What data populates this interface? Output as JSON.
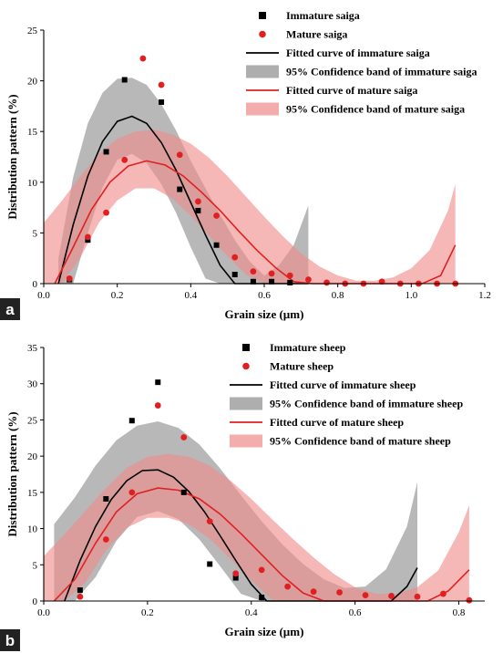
{
  "colors": {
    "immature": "#000000",
    "mature": "#e02020",
    "immature_band": "#8c8c8c",
    "mature_band": "#f08a8a"
  },
  "chart_data": [
    {
      "panel": "a",
      "type": "scatter",
      "xlabel": "Grain size (µm)",
      "ylabel": "Distribution pattern (%)",
      "xlim": [
        0.0,
        1.2
      ],
      "ylim": [
        0,
        25
      ],
      "xticks": [
        "0.0",
        "0.2",
        "0.4",
        "0.6",
        "0.8",
        "1.0",
        "1.2"
      ],
      "xtick_values": [
        0.0,
        0.2,
        0.4,
        0.6,
        0.8,
        1.0,
        1.2
      ],
      "yticks": [
        "0",
        "5",
        "10",
        "15",
        "20",
        "25"
      ],
      "ytick_values": [
        0,
        5,
        10,
        15,
        20,
        25
      ],
      "legend_position": "top-right",
      "legend": [
        {
          "label": "Immature saiga",
          "kind": "square",
          "color": "#000000"
        },
        {
          "label": "Mature saiga",
          "kind": "circle",
          "color": "#e02020"
        },
        {
          "label": "Fitted curve of immature saiga",
          "kind": "line",
          "color": "#000000"
        },
        {
          "label": "95% Confidence band of immature saiga",
          "kind": "band",
          "color": "#8c8c8c"
        },
        {
          "label": "Fitted curve of mature saiga",
          "kind": "line",
          "color": "#e02020"
        },
        {
          "label": "95% Confidence band of mature saiga",
          "kind": "band",
          "color": "#f08a8a"
        }
      ],
      "series": [
        {
          "name": "Immature saiga",
          "marker": "square",
          "x": [
            0.07,
            0.12,
            0.17,
            0.22,
            0.32,
            0.37,
            0.42,
            0.47,
            0.52,
            0.57,
            0.62,
            0.67
          ],
          "y": [
            0.4,
            4.3,
            13.0,
            20.1,
            17.9,
            9.3,
            7.2,
            3.8,
            0.9,
            0.2,
            0.2,
            0.1
          ]
        },
        {
          "name": "Mature saiga",
          "marker": "circle",
          "x": [
            0.07,
            0.12,
            0.17,
            0.22,
            0.27,
            0.32,
            0.37,
            0.42,
            0.47,
            0.52,
            0.57,
            0.62,
            0.67,
            0.72,
            0.77,
            0.82,
            0.87,
            0.92,
            0.97,
            1.02,
            1.07,
            1.12
          ],
          "y": [
            0.5,
            4.6,
            7.0,
            12.2,
            22.2,
            19.6,
            12.7,
            8.1,
            6.7,
            2.6,
            1.2,
            1.0,
            0.8,
            0.4,
            0.1,
            0.0,
            0.0,
            0.2,
            0.0,
            0.0,
            0.0,
            0.0
          ]
        },
        {
          "name": "Fitted curve of immature saiga",
          "kind": "fit",
          "x": [
            0.04,
            0.08,
            0.12,
            0.16,
            0.2,
            0.24,
            0.28,
            0.32,
            0.36,
            0.4,
            0.44,
            0.48,
            0.52,
            0.56,
            0.6,
            0.64,
            0.68,
            0.72
          ],
          "y": [
            0.0,
            5.8,
            10.6,
            14.0,
            16.0,
            16.5,
            15.8,
            13.9,
            11.2,
            8.0,
            4.8,
            1.8,
            0.0,
            0.0,
            0.0,
            0.0,
            0.0,
            0.0
          ]
        },
        {
          "name": "95% Confidence band of immature saiga",
          "kind": "band",
          "x": [
            0.04,
            0.08,
            0.12,
            0.16,
            0.2,
            0.24,
            0.28,
            0.32,
            0.36,
            0.4,
            0.44,
            0.48,
            0.52,
            0.56,
            0.6,
            0.64,
            0.68,
            0.72
          ],
          "lower": [
            0.0,
            0.0,
            5.0,
            9.5,
            12.2,
            12.8,
            11.9,
            9.8,
            7.0,
            3.6,
            0.5,
            0.0,
            0.0,
            0.0,
            0.0,
            0.0,
            0.0,
            0.0
          ],
          "upper": [
            2.5,
            10.5,
            15.8,
            18.8,
            20.2,
            20.3,
            19.6,
            17.7,
            15.1,
            12.1,
            9.4,
            6.8,
            4.3,
            2.2,
            0.8,
            1.8,
            3.8,
            7.7
          ]
        },
        {
          "name": "Fitted curve of mature saiga",
          "kind": "fit",
          "x": [
            0.03,
            0.08,
            0.13,
            0.18,
            0.23,
            0.28,
            0.33,
            0.38,
            0.43,
            0.48,
            0.53,
            0.58,
            0.63,
            0.68,
            0.73,
            0.78,
            0.83,
            0.88,
            0.93,
            0.98,
            1.03,
            1.08,
            1.12
          ],
          "y": [
            0.0,
            3.6,
            7.3,
            10.0,
            11.6,
            12.1,
            11.7,
            10.6,
            9.0,
            7.2,
            5.2,
            3.3,
            1.6,
            0.2,
            0.0,
            0.0,
            0.0,
            0.0,
            0.0,
            0.0,
            0.0,
            0.8,
            3.8
          ]
        },
        {
          "name": "95% Confidence band of mature saiga",
          "kind": "band",
          "x": [
            0.0,
            0.05,
            0.1,
            0.15,
            0.2,
            0.25,
            0.3,
            0.35,
            0.4,
            0.45,
            0.5,
            0.55,
            0.6,
            0.65,
            0.7,
            0.75,
            0.8,
            0.85,
            0.9,
            0.95,
            1.0,
            1.05,
            1.1,
            1.12
          ],
          "lower": [
            0.0,
            0.0,
            2.6,
            6.0,
            8.2,
            9.4,
            9.4,
            8.4,
            6.7,
            4.7,
            2.7,
            0.9,
            0.0,
            0.0,
            0.0,
            0.0,
            0.0,
            0.0,
            0.0,
            0.0,
            0.0,
            0.0,
            0.0,
            0.0
          ],
          "upper": [
            6.0,
            8.2,
            10.6,
            12.8,
            14.3,
            15.0,
            15.2,
            14.7,
            13.8,
            12.4,
            10.6,
            8.6,
            6.6,
            4.7,
            3.0,
            1.7,
            0.8,
            0.3,
            0.3,
            0.6,
            1.5,
            3.3,
            7.2,
            9.8
          ]
        }
      ]
    },
    {
      "panel": "b",
      "type": "scatter",
      "xlabel": "Grain size (µm)",
      "ylabel": "Distribution pattern (%)",
      "xlim": [
        0.0,
        0.85
      ],
      "ylim": [
        0,
        35
      ],
      "xticks": [
        "0.0",
        "0.2",
        "0.4",
        "0.6",
        "0.8"
      ],
      "xtick_values": [
        0.0,
        0.2,
        0.4,
        0.6,
        0.8
      ],
      "yticks": [
        "0",
        "5",
        "10",
        "15",
        "20",
        "25",
        "30",
        "35"
      ],
      "ytick_values": [
        0,
        5,
        10,
        15,
        20,
        25,
        30,
        35
      ],
      "legend_position": "top-right",
      "legend": [
        {
          "label": "Immature sheep",
          "kind": "square",
          "color": "#000000"
        },
        {
          "label": "Mature sheep",
          "kind": "circle",
          "color": "#e02020"
        },
        {
          "label": "Fitted curve of immature sheep",
          "kind": "line",
          "color": "#000000"
        },
        {
          "label": "95% Confidence band of immature sheep",
          "kind": "band",
          "color": "#8c8c8c"
        },
        {
          "label": "Fitted curve of mature sheep",
          "kind": "line",
          "color": "#e02020"
        },
        {
          "label": "95% Confidence band of mature sheep",
          "kind": "band",
          "color": "#f08a8a"
        }
      ],
      "series": [
        {
          "name": "Immature sheep",
          "marker": "square",
          "x": [
            0.07,
            0.12,
            0.17,
            0.22,
            0.27,
            0.32,
            0.37,
            0.42
          ],
          "y": [
            1.5,
            14.1,
            24.9,
            30.2,
            15.0,
            5.1,
            3.2,
            0.5
          ]
        },
        {
          "name": "Mature sheep",
          "marker": "circle",
          "x": [
            0.07,
            0.12,
            0.17,
            0.22,
            0.27,
            0.32,
            0.37,
            0.42,
            0.47,
            0.52,
            0.57,
            0.62,
            0.67,
            0.72,
            0.77,
            0.82
          ],
          "y": [
            0.6,
            8.5,
            15.0,
            27.0,
            22.6,
            11.0,
            3.8,
            4.3,
            2.0,
            1.3,
            1.2,
            0.8,
            0.7,
            0.6,
            1.0,
            0.1
          ]
        },
        {
          "name": "Fitted curve of immature sheep",
          "kind": "fit",
          "x": [
            0.04,
            0.07,
            0.1,
            0.13,
            0.16,
            0.19,
            0.22,
            0.25,
            0.28,
            0.31,
            0.34,
            0.37,
            0.4,
            0.43,
            0.46,
            0.49,
            0.52,
            0.55,
            0.58,
            0.61,
            0.64,
            0.67,
            0.7,
            0.72
          ],
          "y": [
            0.0,
            5.6,
            10.3,
            14.0,
            16.6,
            18.0,
            18.1,
            17.1,
            15.1,
            12.3,
            9.0,
            5.6,
            2.3,
            0.0,
            0.0,
            0.0,
            0.0,
            0.0,
            0.0,
            0.0,
            0.0,
            0.0,
            2.0,
            4.6
          ]
        },
        {
          "name": "95% Confidence band of immature sheep",
          "kind": "band",
          "x": [
            0.02,
            0.06,
            0.1,
            0.14,
            0.18,
            0.22,
            0.26,
            0.3,
            0.34,
            0.38,
            0.42,
            0.46,
            0.5,
            0.54,
            0.58,
            0.62,
            0.66,
            0.7,
            0.72
          ],
          "lower": [
            0.0,
            0.0,
            3.3,
            8.3,
            11.6,
            12.4,
            11.3,
            8.5,
            4.8,
            1.0,
            0.0,
            0.0,
            0.0,
            0.0,
            0.0,
            0.0,
            0.0,
            0.0,
            0.0
          ],
          "upper": [
            10.6,
            14.3,
            18.7,
            22.2,
            24.2,
            24.8,
            23.9,
            21.6,
            18.3,
            14.6,
            11.0,
            7.8,
            5.1,
            3.0,
            1.8,
            2.0,
            4.4,
            10.3,
            16.4
          ]
        },
        {
          "name": "Fitted curve of mature sheep",
          "kind": "fit",
          "x": [
            0.02,
            0.06,
            0.1,
            0.14,
            0.18,
            0.22,
            0.26,
            0.3,
            0.34,
            0.38,
            0.42,
            0.46,
            0.5,
            0.54,
            0.58,
            0.62,
            0.66,
            0.7,
            0.74,
            0.78,
            0.82
          ],
          "y": [
            0.0,
            3.0,
            8.0,
            12.3,
            14.8,
            15.6,
            15.3,
            14.1,
            12.0,
            9.3,
            6.4,
            3.5,
            1.1,
            0.0,
            0.0,
            0.0,
            0.0,
            0.0,
            0.0,
            1.4,
            4.3
          ]
        },
        {
          "name": "95% Confidence band of mature sheep",
          "kind": "band",
          "x": [
            0.0,
            0.04,
            0.08,
            0.12,
            0.16,
            0.2,
            0.24,
            0.28,
            0.32,
            0.36,
            0.4,
            0.44,
            0.48,
            0.52,
            0.56,
            0.6,
            0.64,
            0.68,
            0.72,
            0.76,
            0.8,
            0.82
          ],
          "lower": [
            0.0,
            0.0,
            2.5,
            7.0,
            10.1,
            11.5,
            11.5,
            10.6,
            8.6,
            5.8,
            2.8,
            0.2,
            0.0,
            0.0,
            0.0,
            0.0,
            0.0,
            0.0,
            0.0,
            0.0,
            0.0,
            0.0
          ],
          "upper": [
            6.2,
            9.2,
            12.4,
            15.6,
            18.4,
            19.9,
            20.3,
            19.9,
            18.7,
            16.6,
            14.1,
            11.3,
            8.6,
            6.0,
            3.7,
            1.9,
            1.0,
            1.0,
            1.9,
            4.2,
            9.5,
            13.2
          ]
        }
      ]
    }
  ]
}
